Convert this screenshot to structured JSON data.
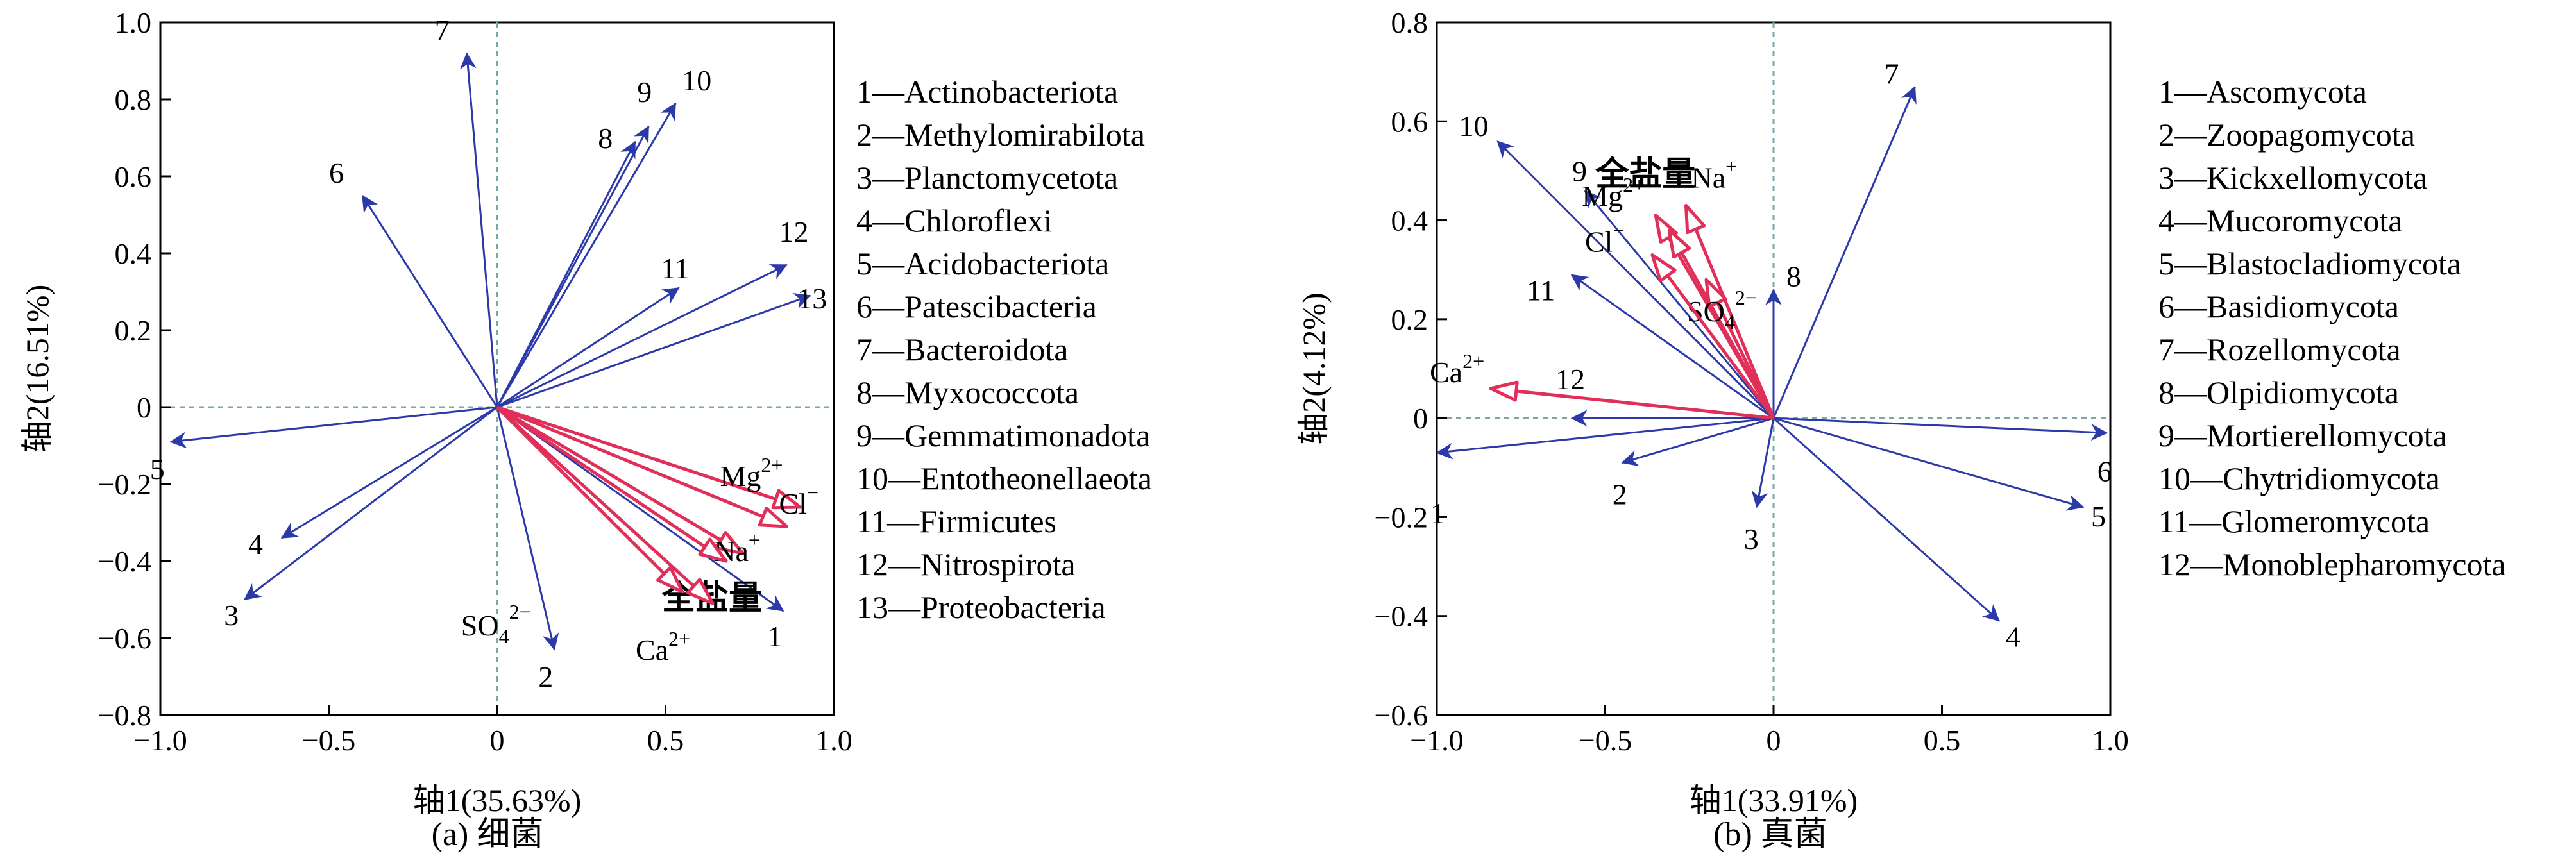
{
  "chart_data": [
    {
      "type": "scatter",
      "subtype": "biplot",
      "caption": "(a)  细菌",
      "xlabel": "轴1(35.63%)",
      "ylabel": "轴2(16.51%)",
      "xlim": [
        -1.0,
        1.0
      ],
      "ylim": [
        -0.8,
        1.0
      ],
      "xticks": [
        "−1.0",
        "−0.5",
        "0",
        "0.5",
        "1.0"
      ],
      "yticks": [
        "1.0",
        "0.8",
        "0.6",
        "0.4",
        "0.2",
        "0",
        "−0.2",
        "−0.4",
        "−0.6",
        "−0.8"
      ],
      "species_color": "#2b3aa8",
      "env_color": "#e0305a",
      "species": [
        {
          "label": "1",
          "x": 0.85,
          "y": -0.53
        },
        {
          "label": "2",
          "x": 0.17,
          "y": -0.63
        },
        {
          "label": "3",
          "x": -0.75,
          "y": -0.5
        },
        {
          "label": "4",
          "x": -0.64,
          "y": -0.34
        },
        {
          "label": "5",
          "x": -0.97,
          "y": -0.09
        },
        {
          "label": "6",
          "x": -0.4,
          "y": 0.55
        },
        {
          "label": "7",
          "x": -0.09,
          "y": 0.92
        },
        {
          "label": "8",
          "x": 0.41,
          "y": 0.69
        },
        {
          "label": "9",
          "x": 0.45,
          "y": 0.73
        },
        {
          "label": "10",
          "x": 0.53,
          "y": 0.79
        },
        {
          "label": "11",
          "x": 0.54,
          "y": 0.31
        },
        {
          "label": "12",
          "x": 0.86,
          "y": 0.37
        },
        {
          "label": "13",
          "x": 0.93,
          "y": 0.29
        }
      ],
      "env": [
        {
          "label": "Mg",
          "sup": "2+",
          "x": 0.9,
          "y": -0.26
        },
        {
          "label": "Cl",
          "sup": "−",
          "x": 0.86,
          "y": -0.31
        },
        {
          "label": "Na",
          "sup": "+",
          "x": 0.73,
          "y": -0.38
        },
        {
          "label": "全盐量",
          "sup": "",
          "x": 0.68,
          "y": -0.4
        },
        {
          "label": "SO",
          "sub": "4",
          "sup": "2−",
          "x": 0.55,
          "y": -0.48
        },
        {
          "label": "Ca",
          "sup": "2+",
          "x": 0.64,
          "y": -0.51
        }
      ],
      "legend": [
        "1—Actinobacteriota",
        "2—Methylomirabilota",
        "3—Planctomycetota",
        "4—Chloroflexi",
        "5—Acidobacteriota",
        "6—Patescibacteria",
        "7—Bacteroidota",
        "8—Myxococcota",
        "9—Gemmatimonadota",
        "10—Entotheonellaeota",
        "11—Firmicutes",
        "12—Nitrospirota",
        "13—Proteobacteria"
      ]
    },
    {
      "type": "scatter",
      "subtype": "biplot",
      "caption": "(b)  真菌",
      "xlabel": "轴1(33.91%)",
      "ylabel": "轴2(4.12%)",
      "xlim": [
        -1.0,
        1.0
      ],
      "ylim": [
        -0.6,
        0.8
      ],
      "xticks": [
        "−1.0",
        "−0.5",
        "0",
        "0.5",
        "1.0"
      ],
      "yticks": [
        "0.8",
        "0.6",
        "0.4",
        "0.2",
        "0",
        "−0.2",
        "−0.4",
        "−0.6"
      ],
      "species_color": "#2b3aa8",
      "env_color": "#e0305a",
      "species": [
        {
          "label": "1",
          "x": -1.0,
          "y": -0.07
        },
        {
          "label": "2",
          "x": -0.45,
          "y": -0.09
        },
        {
          "label": "3",
          "x": -0.05,
          "y": -0.18
        },
        {
          "label": "4",
          "x": 0.67,
          "y": -0.41
        },
        {
          "label": "5",
          "x": 0.92,
          "y": -0.18
        },
        {
          "label": "6",
          "x": 0.99,
          "y": -0.03
        },
        {
          "label": "7",
          "x": 0.42,
          "y": 0.67
        },
        {
          "label": "8",
          "x": 0.0,
          "y": 0.26
        },
        {
          "label": "9",
          "x": -0.56,
          "y": 0.46
        },
        {
          "label": "10",
          "x": -0.82,
          "y": 0.56
        },
        {
          "label": "11",
          "x": -0.6,
          "y": 0.29
        },
        {
          "label": "12",
          "x": -0.6,
          "y": 0.0
        }
      ],
      "env": [
        {
          "label": "Ca",
          "sup": "2+",
          "x": -0.84,
          "y": 0.06
        },
        {
          "label": "Mg",
          "sup": "2+",
          "x": -0.35,
          "y": 0.41
        },
        {
          "label": "Na",
          "sup": "+",
          "x": -0.26,
          "y": 0.43
        },
        {
          "label": "全盐量",
          "sup": "",
          "x": -0.31,
          "y": 0.38
        },
        {
          "label": "SO",
          "sub": "4",
          "sup": "2−",
          "x": -0.2,
          "y": 0.28
        },
        {
          "label": "Cl",
          "sup": "−",
          "x": -0.36,
          "y": 0.33
        }
      ],
      "legend": [
        "1—Ascomycota",
        "2—Zoopagomycota",
        "3—Kickxellomycota",
        "4—Mucoromycota",
        "5—Blastocladiomycota",
        "6—Basidiomycota",
        "7—Rozellomycota",
        "8—Olpidiomycota",
        "9—Mortierellomycota",
        "10—Chytridiomycota",
        "11—Glomeromycota",
        "12—Monoblepharomycota"
      ]
    }
  ]
}
